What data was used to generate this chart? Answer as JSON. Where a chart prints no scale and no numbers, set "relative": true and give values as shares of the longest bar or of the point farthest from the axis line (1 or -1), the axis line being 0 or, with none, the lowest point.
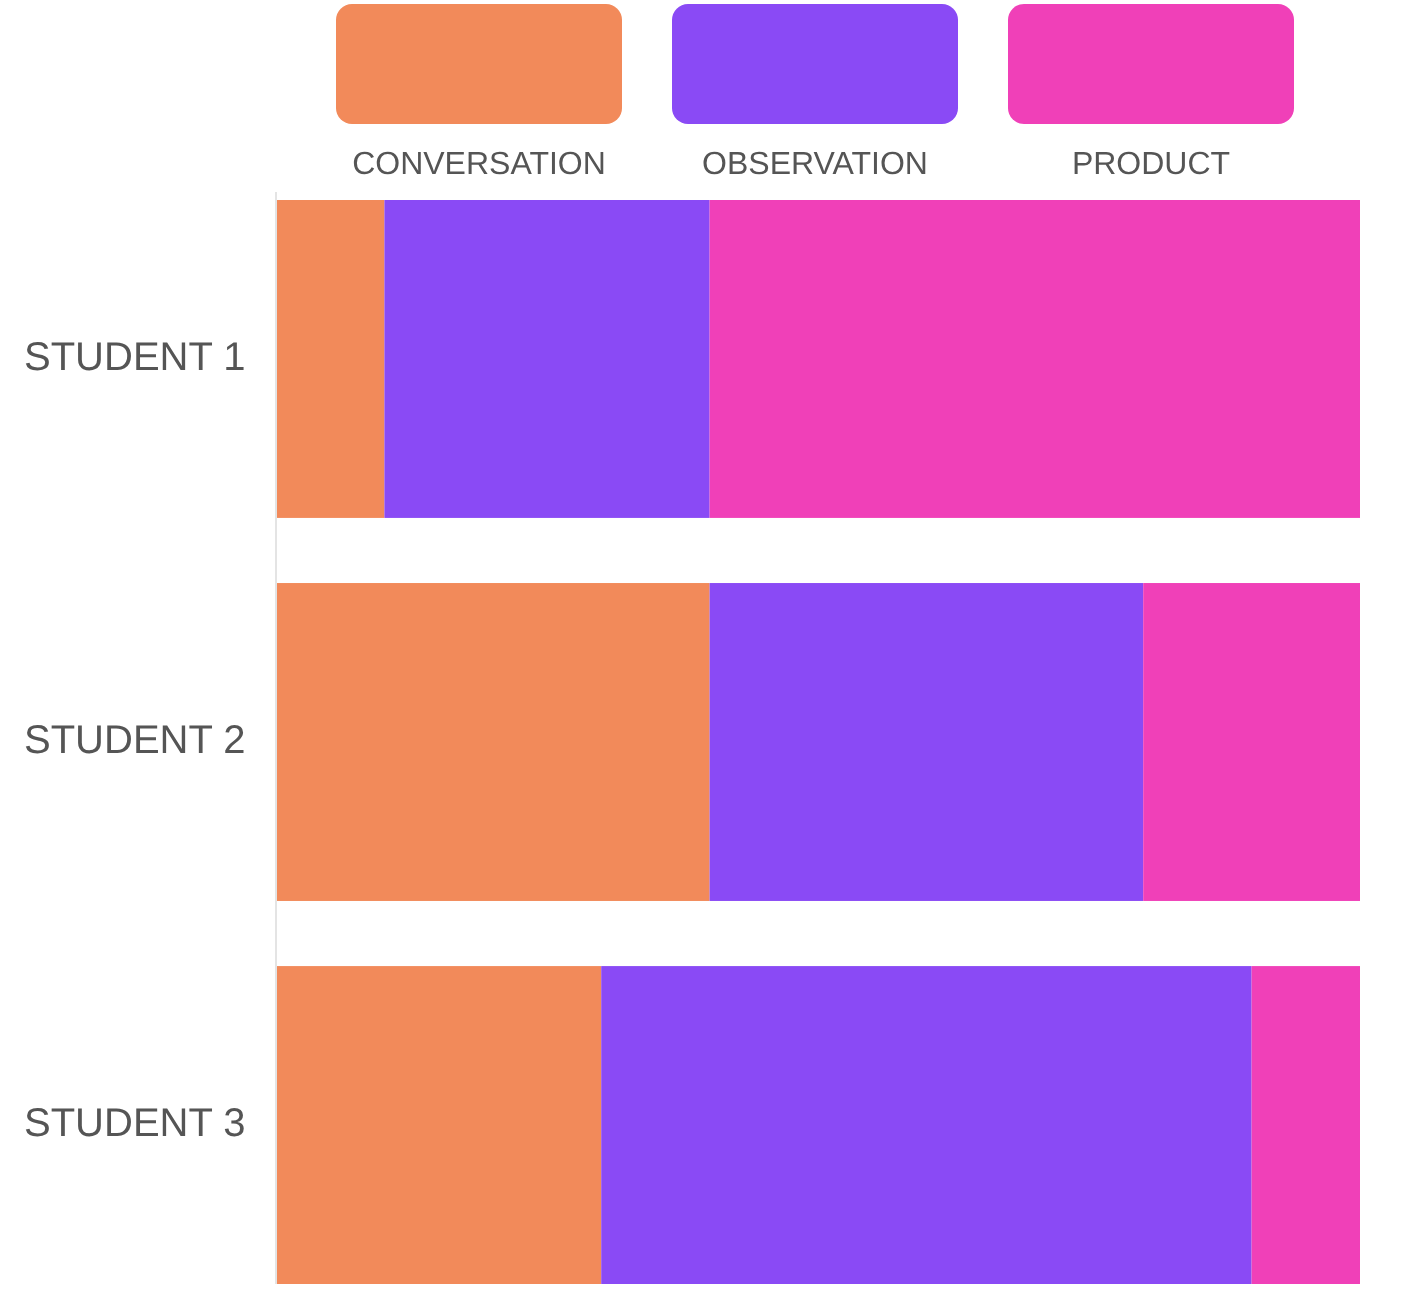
{
  "chart_data": {
    "type": "bar",
    "orientation": "horizontal",
    "stacked": true,
    "relative": true,
    "legend": "top",
    "categories": [
      "STUDENT 1",
      "STUDENT 2",
      "STUDENT 3"
    ],
    "series": [
      {
        "name": "CONVERSATION",
        "color": "#f28a5a",
        "values": [
          0.1,
          0.4,
          0.3
        ]
      },
      {
        "name": "OBSERVATION",
        "color": "#8a4af5",
        "values": [
          0.3,
          0.4,
          0.6
        ]
      },
      {
        "name": "PRODUCT",
        "color": "#f040b8",
        "values": [
          0.6,
          0.2,
          0.1
        ]
      }
    ]
  }
}
